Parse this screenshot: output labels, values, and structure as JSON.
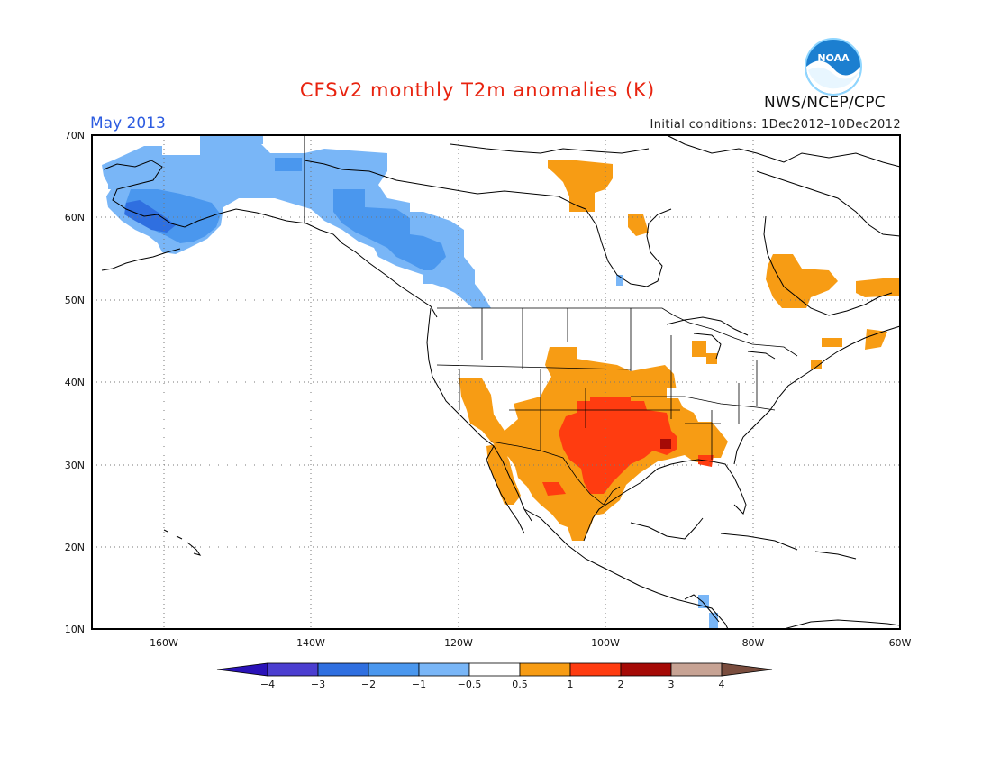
{
  "title": "CFSv2 monthly T2m anomalies (K)",
  "period": "May 2013",
  "initial_conditions": "Initial conditions: 1Dec2012–10Dec2012",
  "agency": "NWS/NCEP/CPC",
  "logo": {
    "text": "NOAA",
    "icon": "noaa-logo"
  },
  "map": {
    "lat_labels": [
      "70N",
      "60N",
      "50N",
      "40N",
      "30N",
      "20N",
      "10N"
    ],
    "lon_labels": [
      "160W",
      "140W",
      "120W",
      "100W",
      "80W",
      "60W"
    ]
  },
  "legend": {
    "labels": [
      "−4",
      "−3",
      "−2",
      "−1",
      "−0.5",
      "0.5",
      "1",
      "2",
      "3",
      "4"
    ],
    "colors": [
      "#2a12b8",
      "#4b3ed0",
      "#2f6fe0",
      "#4a97ee",
      "#79b6f7",
      "#ffffff",
      "#f79c14",
      "#ff3c10",
      "#a50a06",
      "#c7a394",
      "#7a4d3e"
    ]
  }
}
